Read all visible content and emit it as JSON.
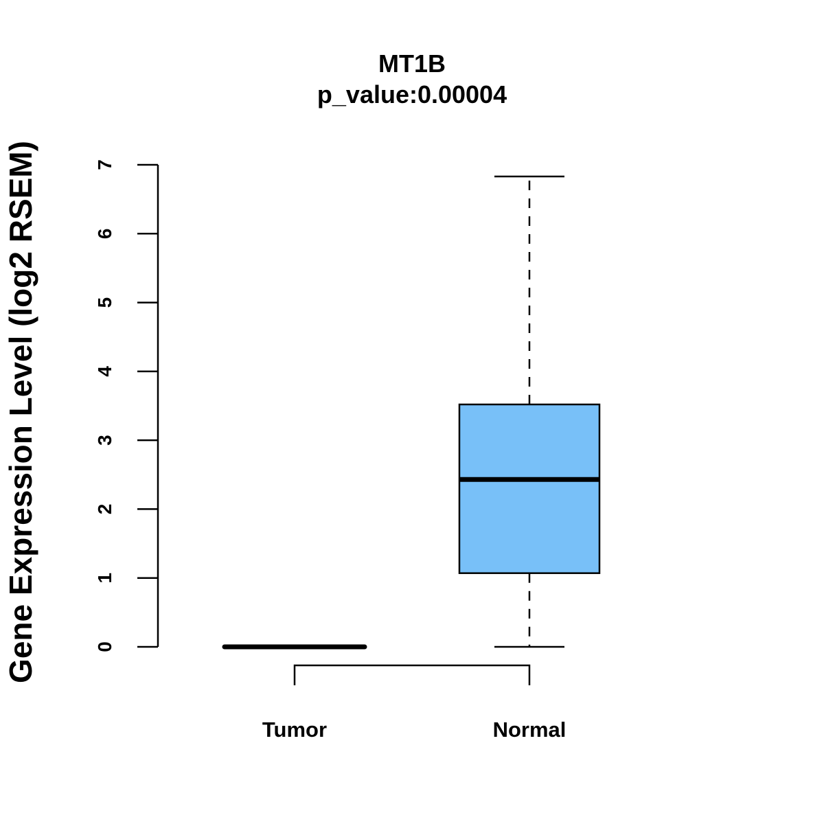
{
  "chart_data": {
    "type": "boxplot",
    "title": "MT1B",
    "subtitle": "p_value:0.00004",
    "ylabel": "Gene Expression Level (log2 RSEM)",
    "xlabel": "",
    "ylim": [
      0,
      7
    ],
    "yticks": [
      0,
      1,
      2,
      3,
      4,
      5,
      6,
      7
    ],
    "grid": false,
    "categories": [
      "Tumor",
      "Normal"
    ],
    "boxes": [
      {
        "category": "Tumor",
        "whisker_low": 0,
        "q1": 0,
        "median": 0,
        "q3": 0,
        "whisker_high": 0,
        "fill": "#ffffff"
      },
      {
        "category": "Normal",
        "whisker_low": 0,
        "q1": 1.07,
        "median": 2.43,
        "q3": 3.52,
        "whisker_high": 6.83,
        "fill": "#78c0f8"
      }
    ],
    "comparison_bracket": [
      "Tumor",
      "Normal"
    ]
  }
}
